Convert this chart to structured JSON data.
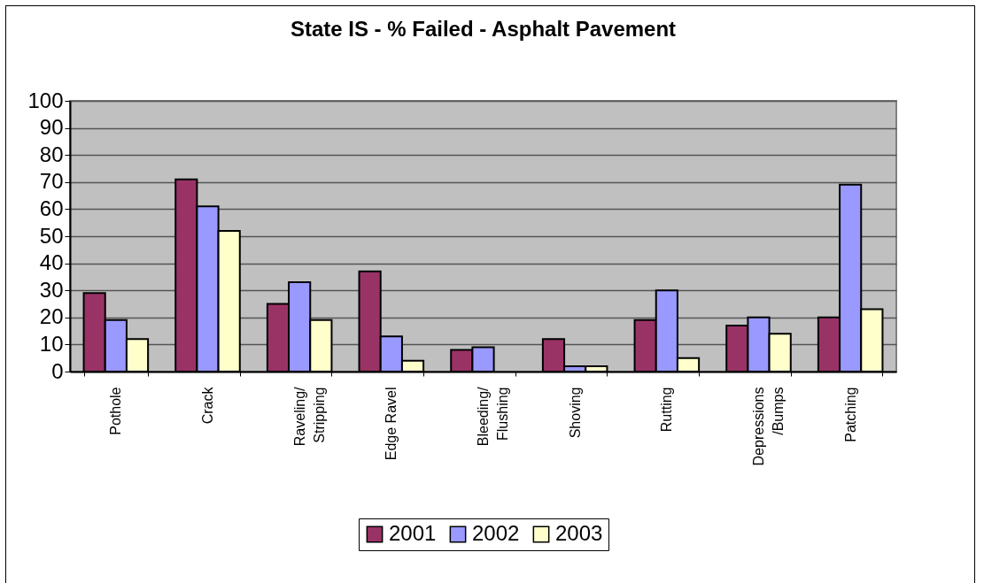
{
  "chart_data": {
    "type": "bar",
    "title": "State IS - % Failed - Asphalt Pavement",
    "categories": [
      "Pothole",
      "Crack",
      "Raveling/\nStripping",
      "Edge Ravel",
      "Bleeding/\nFlushing",
      "Shoving",
      "Rutting",
      "Depressions\n/Bumps",
      "Patching"
    ],
    "series": [
      {
        "name": "2001",
        "color": "#993366",
        "values": [
          29,
          71,
          25,
          37,
          8,
          12,
          19,
          17,
          20
        ]
      },
      {
        "name": "2002",
        "color": "#9999ff",
        "values": [
          19,
          61,
          33,
          13,
          9,
          2,
          30,
          20,
          69
        ]
      },
      {
        "name": "2003",
        "color": "#ffffcc",
        "values": [
          12,
          52,
          19,
          4,
          null,
          2,
          5,
          14,
          23
        ]
      }
    ],
    "ylim": [
      0,
      100
    ],
    "yticks": [
      0,
      10,
      20,
      30,
      40,
      50,
      60,
      70,
      80,
      90,
      100
    ],
    "grid": "y",
    "legend": "bottom"
  }
}
